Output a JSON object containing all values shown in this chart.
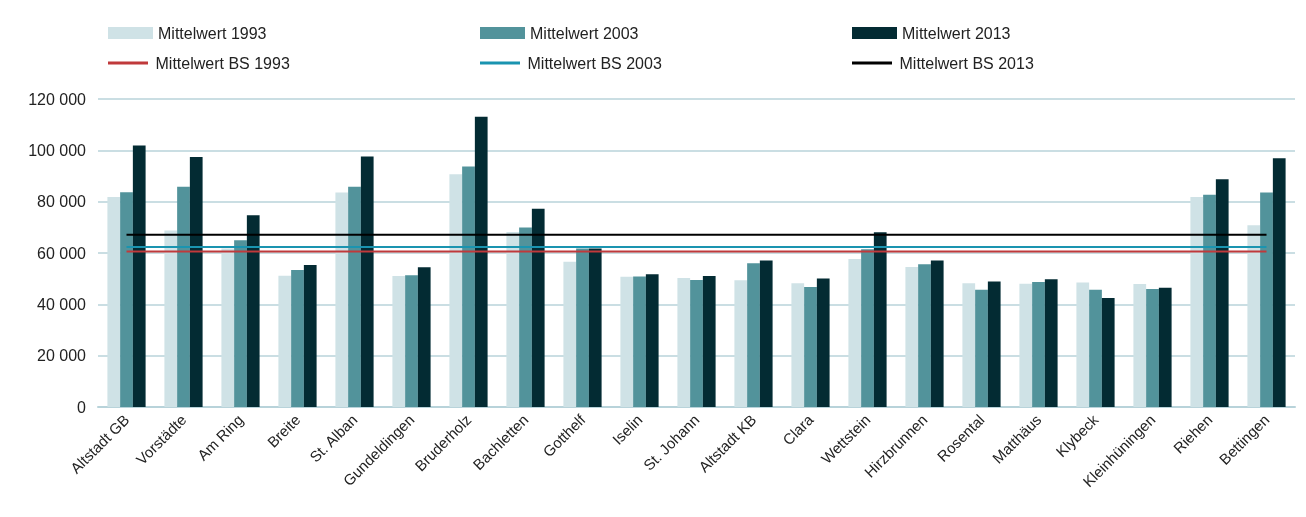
{
  "chart_data": {
    "type": "bar",
    "categories": [
      "Altstadt GB",
      "Vorstädte",
      "Am Ring",
      "Breite",
      "St. Alban",
      "Gundeldingen",
      "Bruderholz",
      "Bachletten",
      "Gotthelf",
      "Iselin",
      "St. Johann",
      "Altstadt KB",
      "Clara",
      "Wettstein",
      "Hirzbrunnen",
      "Rosental",
      "Matthäus",
      "Klybeck",
      "Kleinhüningen",
      "Riehen",
      "Bettingen"
    ],
    "series": [
      {
        "name": "Mittelwert 1993",
        "color": "#cfe2e6",
        "values": [
          81800,
          68800,
          61800,
          51100,
          83600,
          51000,
          90700,
          68200,
          56600,
          50700,
          50300,
          49400,
          48200,
          57700,
          54500,
          48200,
          48000,
          48500,
          47900,
          81800,
          70800
        ]
      },
      {
        "name": "Mittelwert 2003",
        "color": "#52939b",
        "values": [
          83700,
          85800,
          65000,
          53400,
          85800,
          51300,
          93700,
          69900,
          61800,
          50800,
          49500,
          56000,
          46800,
          61500,
          55600,
          45700,
          48700,
          45700,
          46000,
          82700,
          83600
        ]
      },
      {
        "name": "Mittelwert 2013",
        "color": "#032b33",
        "values": [
          101900,
          97400,
          74700,
          55300,
          97600,
          54400,
          113100,
          77200,
          61800,
          51700,
          51000,
          57100,
          50100,
          68100,
          57100,
          48900,
          49800,
          42500,
          46500,
          88700,
          96900
        ]
      },
      {
        "type": "line",
        "name": "Mittelwert BS 1993",
        "color": "#c0393b",
        "values": [
          60600,
          60600,
          60600,
          60600,
          60600,
          60600,
          60600,
          60600,
          60600,
          60600,
          60600,
          60600,
          60600,
          60600,
          60600,
          60600,
          60600,
          60600,
          60600,
          60600,
          60600
        ]
      },
      {
        "type": "line",
        "name": "Mittelwert BS 2003",
        "color": "#1a94b0",
        "values": [
          62300,
          62300,
          62300,
          62300,
          62300,
          62300,
          62300,
          62300,
          62300,
          62300,
          62300,
          62300,
          62300,
          62300,
          62300,
          62300,
          62300,
          62300,
          62300,
          62300,
          62300
        ]
      },
      {
        "type": "line",
        "name": "Mittelwert BS 2013",
        "color": "#000000",
        "values": [
          67100,
          67100,
          67100,
          67100,
          67100,
          67100,
          67100,
          67100,
          67100,
          67100,
          67100,
          67100,
          67100,
          67100,
          67100,
          67100,
          67100,
          67100,
          67100,
          67100,
          67100
        ]
      }
    ],
    "ylim": [
      0,
      120000
    ],
    "yticks": [
      0,
      {
        "value": 20000,
        "label": "20 000"
      },
      {
        "value": 40000,
        "label": "40 000"
      },
      {
        "value": 60000,
        "label": "60 000"
      },
      {
        "value": 80000,
        "label": "80 000"
      },
      {
        "value": 100000,
        "label": "100 000"
      },
      {
        "value": 120000,
        "label": "120 000"
      }
    ],
    "grid": "y",
    "legend": "top"
  }
}
